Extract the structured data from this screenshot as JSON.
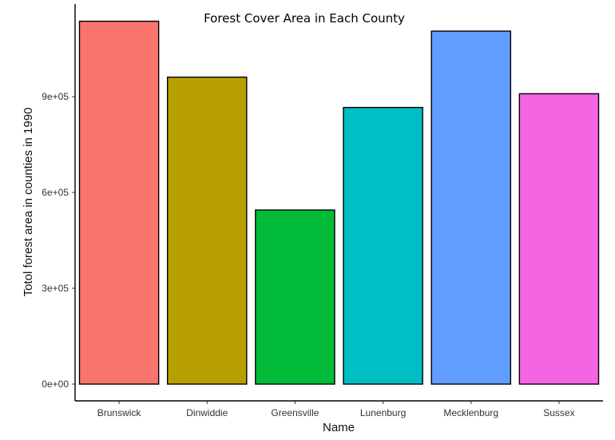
{
  "chart_data": {
    "type": "bar",
    "title": "Forest Cover Area in Each County",
    "xlabel": "Name",
    "ylabel": "Totol forest area in counties in 1990",
    "categories": [
      "Brunswick",
      "Dinwiddie",
      "Greensville",
      "Lunenburg",
      "Mecklenburg",
      "Sussex"
    ],
    "values": [
      1136000,
      961000,
      545000,
      866000,
      1105000,
      909000
    ],
    "colors": [
      "#F8766D",
      "#B79F00",
      "#00BA38",
      "#00BFC4",
      "#619CFF",
      "#F564E3"
    ],
    "yticks": [
      0,
      300000,
      600000,
      900000
    ],
    "ytick_labels": [
      "0e+00",
      "3e+05",
      "6e+05",
      "9e+05"
    ],
    "ylim": [
      0,
      1190000
    ],
    "grid": false,
    "legend": "none"
  }
}
